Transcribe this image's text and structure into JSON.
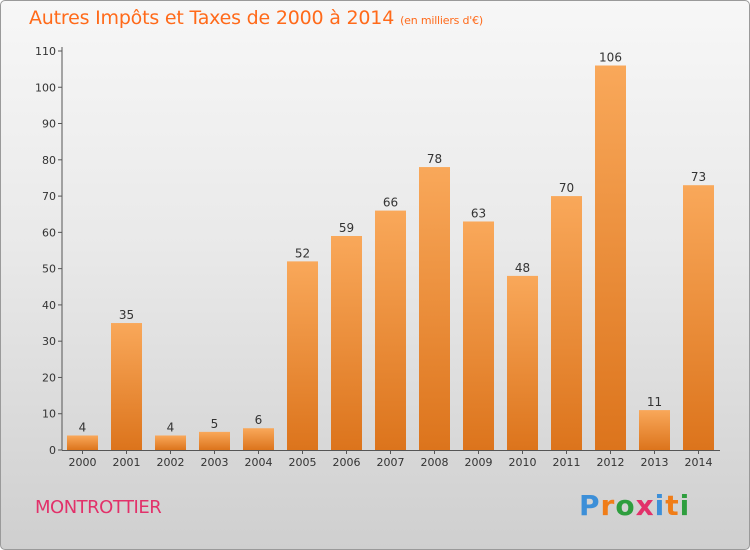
{
  "title": "Autres Impôts et Taxes de 2000 à 2014",
  "unit_note": "(en milliers d'€)",
  "commune": "MONTROTTIER",
  "brand": {
    "letters": [
      "P",
      "r",
      "o",
      "x",
      "i",
      "t",
      "i"
    ],
    "colors": [
      "#3c8fd8",
      "#f07d18",
      "#2e9e3e",
      "#e2316a",
      "#3c8fd8",
      "#f07d18",
      "#2e9e3e"
    ]
  },
  "colors": {
    "bar_light": "#f9a85a",
    "bar_dark": "#dc741c",
    "title": "#ff6a1a",
    "commune": "#e2316a"
  },
  "chart_data": {
    "type": "bar",
    "title": "Autres Impôts et Taxes de 2000 à 2014",
    "subtitle": "(en milliers d'€)",
    "xlabel": "",
    "ylabel": "",
    "categories": [
      "2000",
      "2001",
      "2002",
      "2003",
      "2004",
      "2005",
      "2006",
      "2007",
      "2008",
      "2009",
      "2010",
      "2011",
      "2012",
      "2013",
      "2014"
    ],
    "values": [
      4,
      35,
      4,
      5,
      6,
      52,
      59,
      66,
      78,
      63,
      48,
      70,
      106,
      11,
      73
    ],
    "ylim": [
      0,
      110
    ],
    "yticks": [
      0,
      10,
      20,
      30,
      40,
      50,
      60,
      70,
      80,
      90,
      100,
      110
    ],
    "grid": false,
    "legend": "none"
  }
}
